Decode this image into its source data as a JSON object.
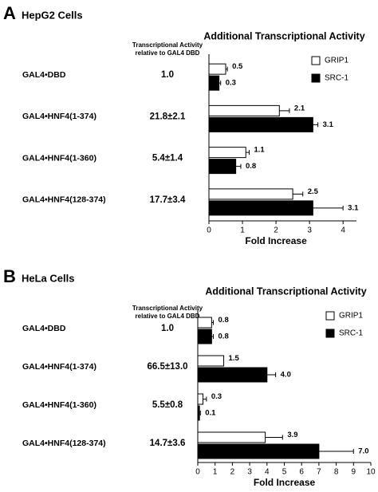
{
  "chart_data": [
    {
      "type": "bar",
      "orientation": "horizontal",
      "panel_label": "A",
      "panel_title": "HepG2 Cells",
      "column_header": [
        "Transcriptional Activity",
        "relative to GAL4 DBD"
      ],
      "title": "Additional Transcriptional Activity",
      "categories": [
        "GAL4•DBD",
        "GAL4•HNF4(1-374)",
        "GAL4•HNF4(1-360)",
        "GAL4•HNF4(128-374)"
      ],
      "activity": [
        "1.0",
        "21.8±2.1",
        "5.4±1.4",
        "17.7±3.4"
      ],
      "series": [
        {
          "name": "GRIP1",
          "color": "#ffffff",
          "values": [
            0.5,
            2.1,
            1.1,
            2.5
          ],
          "errors": [
            0.05,
            0.3,
            0.1,
            0.3
          ]
        },
        {
          "name": "SRC-1",
          "color": "#000000",
          "values": [
            0.3,
            3.1,
            0.8,
            3.1
          ],
          "errors": [
            0.05,
            0.15,
            0.15,
            0.9
          ]
        }
      ],
      "xlabel": "Fold Increase",
      "xlim": [
        0,
        4.4
      ],
      "xticks": [
        0,
        1,
        2,
        3,
        4
      ],
      "legend": "upper right"
    },
    {
      "type": "bar",
      "orientation": "horizontal",
      "panel_label": "B",
      "panel_title": "HeLa Cells",
      "column_header": [
        "Transcriptional Activity",
        "relative to GAL4 DBD"
      ],
      "title": "Additional Transcriptional Activity",
      "categories": [
        "GAL4•DBD",
        "GAL4•HNF4(1-374)",
        "GAL4•HNF4(1-360)",
        "GAL4•HNF4(128-374)"
      ],
      "activity": [
        "1.0",
        "66.5±13.0",
        "5.5±0.8",
        "14.7±3.6"
      ],
      "series": [
        {
          "name": "GRIP1",
          "color": "#ffffff",
          "values": [
            0.8,
            1.5,
            0.3,
            3.9
          ],
          "value_labels": [
            "0.8",
            "1.5",
            "0.3",
            "3.9"
          ],
          "errors": [
            0.1,
            null,
            0.2,
            1.0
          ]
        },
        {
          "name": "SRC-1",
          "color": "#000000",
          "values": [
            0.8,
            4.0,
            0.1,
            7.0
          ],
          "value_labels": [
            "0.8",
            "4.0",
            "0.1",
            "7.0"
          ],
          "errors": [
            0.1,
            0.5,
            0.05,
            2.0
          ]
        }
      ],
      "xlabel": "Fold Increase",
      "xlim": [
        0,
        10
      ],
      "xticks": [
        0,
        1,
        2,
        3,
        4,
        5,
        6,
        7,
        8,
        9,
        10
      ],
      "legend": "upper right"
    }
  ]
}
